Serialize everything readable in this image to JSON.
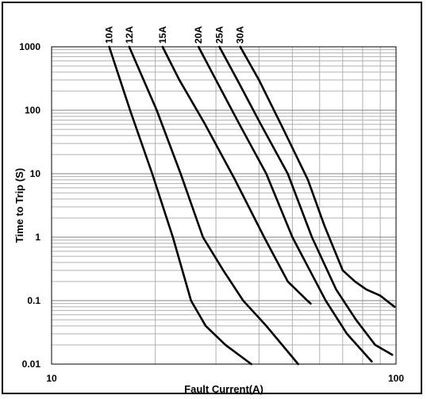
{
  "chart_data": {
    "type": "line",
    "title": "",
    "xlabel": "Fault Current(A)",
    "ylabel": "Time to Trip (S)",
    "xscale": "log",
    "yscale": "log",
    "xlim": [
      10,
      100
    ],
    "ylim": [
      0.01,
      1000
    ],
    "grid": true,
    "legend": "none",
    "colors": {
      "line": "#000000",
      "grid": "#b0b0b0",
      "frame": "#000000"
    },
    "x_ticks": [
      {
        "value": 10,
        "label": "10"
      },
      {
        "value": 100,
        "label": "100"
      }
    ],
    "y_ticks": [
      {
        "value": 1000,
        "label": "1000"
      },
      {
        "value": 100,
        "label": "100"
      },
      {
        "value": 10,
        "label": "10"
      },
      {
        "value": 1,
        "label": "1"
      },
      {
        "value": 0.1,
        "label": "0.1"
      },
      {
        "value": 0.01,
        "label": "0.01"
      }
    ],
    "series": [
      {
        "name": "10A",
        "x": [
          14.7,
          16.9,
          19.6,
          22.5,
          25.4,
          28.0,
          32.0,
          38.0
        ],
        "y": [
          1000,
          100,
          10,
          1,
          0.1,
          0.04,
          0.02,
          0.01
        ]
      },
      {
        "name": "12A",
        "x": [
          16.8,
          20.2,
          23.7,
          27.5,
          31.5,
          36.0,
          42.0,
          52.0
        ],
        "y": [
          1000,
          100,
          10,
          1,
          0.3,
          0.1,
          0.04,
          0.01
        ]
      },
      {
        "name": "15A",
        "x": [
          21.0,
          23.5,
          27.9,
          34.1,
          41.4,
          48.5,
          55.3,
          56.5
        ],
        "y": [
          1000,
          300,
          60,
          8,
          1,
          0.2,
          0.1,
          0.09
        ]
      },
      {
        "name": "20A",
        "x": [
          26.7,
          30.0,
          35.1,
          42.0,
          50.0,
          62.5,
          72.0,
          85.0
        ],
        "y": [
          1000,
          300,
          60,
          10,
          1,
          0.1,
          0.03,
          0.011
        ]
      },
      {
        "name": "25A",
        "x": [
          30.7,
          34.6,
          40.5,
          48.5,
          57.0,
          67.0,
          76.5,
          87.0,
          97.5
        ],
        "y": [
          1000,
          300,
          60,
          10,
          1,
          0.15,
          0.05,
          0.02,
          0.014
        ]
      },
      {
        "name": "30A",
        "x": [
          35.3,
          40.0,
          47.1,
          55.5,
          62.0,
          70.0,
          76.0,
          82.0,
          90.0,
          99.0
        ],
        "y": [
          1000,
          300,
          50,
          8,
          1.5,
          0.3,
          0.2,
          0.15,
          0.12,
          0.08
        ]
      }
    ]
  }
}
